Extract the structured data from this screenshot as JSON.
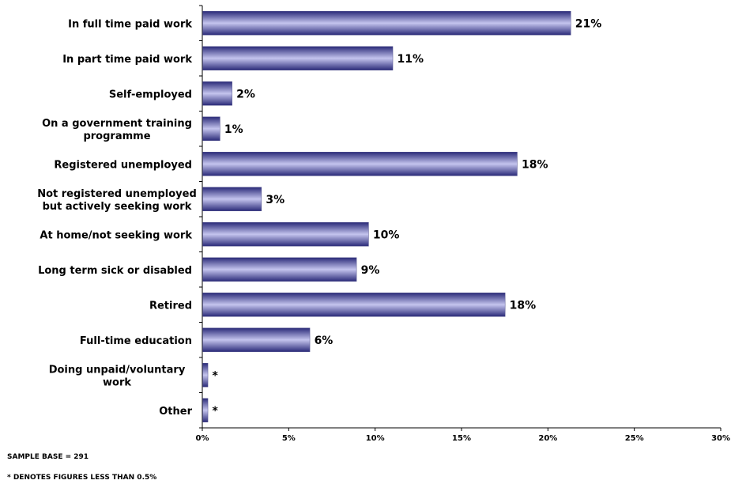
{
  "chart_data": {
    "type": "bar",
    "orientation": "horizontal",
    "categories": [
      [
        "In full time paid work"
      ],
      [
        "In part time paid work"
      ],
      [
        "Self-employed"
      ],
      [
        "On a government training",
        "programme"
      ],
      [
        "Registered unemployed"
      ],
      [
        "Not registered unemployed",
        "but actively seeking work"
      ],
      [
        "At home/not seeking work"
      ],
      [
        "Long term sick or disabled"
      ],
      [
        "Retired"
      ],
      [
        "Full-time education"
      ],
      [
        "Doing unpaid/voluntary",
        "work"
      ],
      [
        "Other"
      ]
    ],
    "values": [
      21.3,
      11.0,
      1.7,
      1.0,
      18.2,
      3.4,
      9.6,
      8.9,
      17.5,
      6.2,
      0.3,
      0.3
    ],
    "value_labels": [
      "21%",
      "11%",
      "2%",
      "1%",
      "18%",
      "3%",
      "10%",
      "9%",
      "18%",
      "6%",
      "*",
      "*"
    ],
    "xlim": [
      0,
      30
    ],
    "xticks": [
      "0%",
      "5%",
      "10%",
      "15%",
      "20%",
      "25%",
      "30%"
    ],
    "xtick_values": [
      0,
      5,
      10,
      15,
      20,
      25,
      30
    ],
    "grid": false,
    "legend": "none",
    "bar_colors": {
      "edge": "#2a2a78",
      "center": "#c4c4ee"
    }
  },
  "notes": {
    "sample_base": "SAMPLE BASE = 291",
    "asterisk": "* DENOTES FIGURES LESS THAN 0.5%"
  }
}
